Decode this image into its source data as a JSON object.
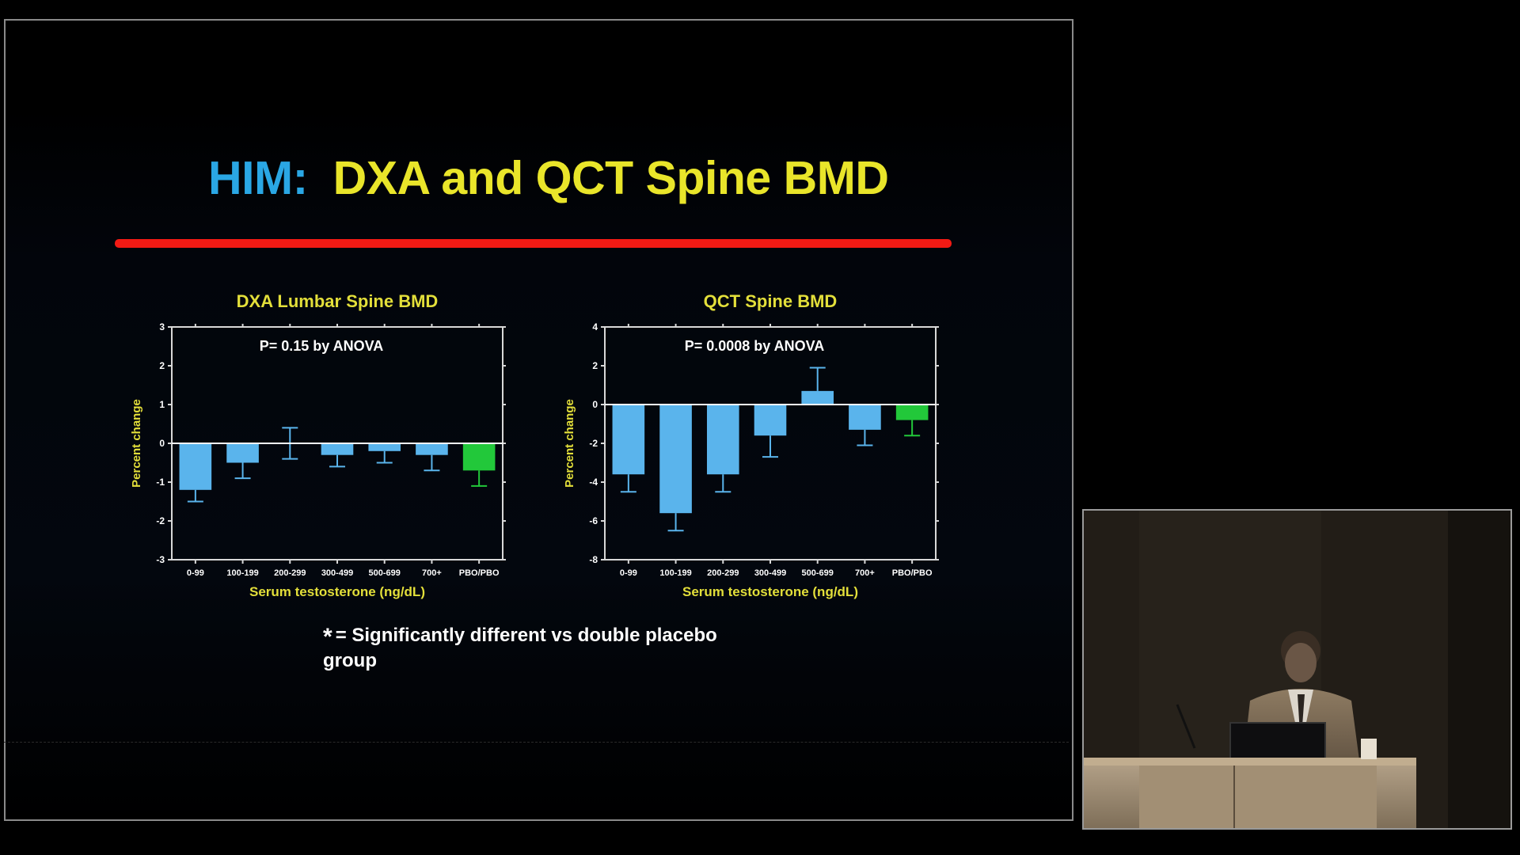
{
  "slide": {
    "title_prefix": "HIM:",
    "title_main": "DXA and QCT Spine BMD",
    "footnote_star": "*",
    "footnote_text": "= Significantly different vs double placebo group"
  },
  "colors": {
    "title_prefix": "#2aa7e4",
    "title_main": "#e9e52a",
    "rule": "#f21a14",
    "bar_treatment": "#5ab4ec",
    "bar_placebo": "#22c83a",
    "label_yellow": "#e3df3a"
  },
  "chart_data": [
    {
      "type": "bar",
      "title": "DXA Lumbar Spine BMD",
      "xlabel": "Serum testosterone (ng/dL)",
      "ylabel": "Percent change",
      "annotation": "P= 0.15 by ANOVA",
      "categories": [
        "0-99",
        "100-199",
        "200-299",
        "300-499",
        "500-699",
        "700+",
        "PBO/PBO"
      ],
      "values": [
        -1.2,
        -0.5,
        0.0,
        -0.3,
        -0.2,
        -0.3,
        -0.7
      ],
      "error": [
        0.3,
        0.4,
        0.4,
        0.3,
        0.3,
        0.4,
        0.4
      ],
      "ylim": [
        -3,
        3
      ],
      "yticks": [
        3,
        2,
        1,
        0,
        -1,
        -2,
        -3
      ],
      "bar_colors": [
        "#5ab4ec",
        "#5ab4ec",
        "#5ab4ec",
        "#5ab4ec",
        "#5ab4ec",
        "#5ab4ec",
        "#22c83a"
      ],
      "grid": false
    },
    {
      "type": "bar",
      "title": "QCT Spine BMD",
      "xlabel": "Serum testosterone (ng/dL)",
      "ylabel": "Percent change",
      "annotation": "P= 0.0008 by ANOVA",
      "categories": [
        "0-99",
        "100-199",
        "200-299",
        "300-499",
        "500-699",
        "700+",
        "PBO/PBO"
      ],
      "values": [
        -3.6,
        -5.6,
        -3.6,
        -1.6,
        0.7,
        -1.3,
        -0.8
      ],
      "error": [
        0.9,
        0.9,
        0.9,
        1.1,
        1.2,
        0.8,
        0.8
      ],
      "ylim": [
        -8,
        4
      ],
      "yticks": [
        4,
        2,
        0,
        -2,
        -4,
        -6,
        -8
      ],
      "bar_colors": [
        "#5ab4ec",
        "#5ab4ec",
        "#5ab4ec",
        "#5ab4ec",
        "#5ab4ec",
        "#5ab4ec",
        "#22c83a"
      ],
      "grid": false
    }
  ]
}
